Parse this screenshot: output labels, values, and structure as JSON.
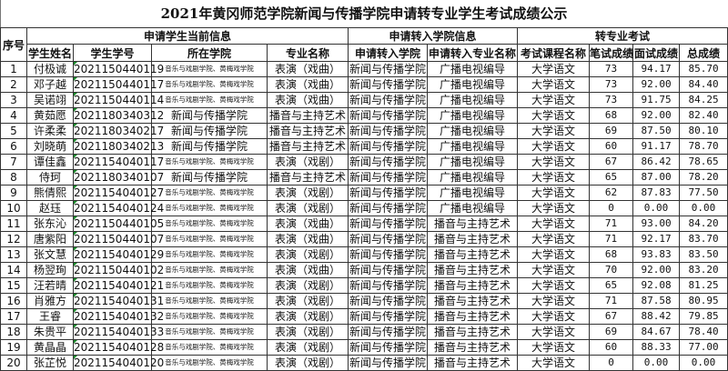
{
  "title": "2021年黄冈师范学院新闻与传播学院申请转专业学生考试成绩公示",
  "group_headers": {
    "index": "序号",
    "current": "申请学生当前信息",
    "target": "申请转入学院信息",
    "exam": "转专业考试"
  },
  "columns": [
    "学生姓名",
    "学生学号",
    "所在学院",
    "专业名称",
    "申请转入学院",
    "申请转入专业名称",
    "考试课程名称",
    "笔试成绩",
    "面试成绩",
    "总成绩"
  ],
  "rows": [
    [
      "1",
      "付极诚",
      "2021150440119",
      "音乐与戏剧学院、黄梅戏学院",
      "表演（戏曲）",
      "新闻与传播学院",
      "广播电视编导",
      "大学语文",
      "73",
      "94.17",
      "85.70"
    ],
    [
      "2",
      "邓子越",
      "2021150440117",
      "音乐与戏剧学院、黄梅戏学院",
      "表演（戏曲）",
      "新闻与传播学院",
      "广播电视编导",
      "大学语文",
      "73",
      "92.00",
      "84.40"
    ],
    [
      "3",
      "吴诺翊",
      "2021150440114",
      "音乐与戏剧学院、黄梅戏学院",
      "表演（戏曲）",
      "新闻与传播学院",
      "广播电视编导",
      "大学语文",
      "73",
      "91.75",
      "84.25"
    ],
    [
      "4",
      "黄茹愿",
      "2021180340312",
      "新闻与传播学院",
      "播音与主持艺术",
      "新闻与传播学院",
      "广播电视编导",
      "大学语文",
      "68",
      "92.00",
      "82.40"
    ],
    [
      "5",
      "许柔柔",
      "2021180340217",
      "新闻与传播学院",
      "播音与主持艺术",
      "新闻与传播学院",
      "广播电视编导",
      "大学语文",
      "69",
      "87.50",
      "80.10"
    ],
    [
      "6",
      "刘晓萌",
      "2021180340213",
      "新闻与传播学院",
      "播音与主持艺术",
      "新闻与传播学院",
      "广播电视编导",
      "大学语文",
      "60",
      "91.17",
      "78.70"
    ],
    [
      "7",
      "谭佳鑫",
      "2021154040117",
      "音乐与戏剧学院、黄梅戏学院",
      "表演（戏剧）",
      "新闻与传播学院",
      "广播电视编导",
      "大学语文",
      "67",
      "86.42",
      "78.65"
    ],
    [
      "8",
      "侍珂",
      "2021180340107",
      "新闻与传播学院",
      "播音与主持艺术",
      "新闻与传播学院",
      "广播电视编导",
      "大学语文",
      "65",
      "87.00",
      "78.20"
    ],
    [
      "9",
      "熊倩熙",
      "2021154040127",
      "音乐与戏剧学院、黄梅戏学院",
      "表演（戏剧）",
      "新闻与传播学院",
      "广播电视编导",
      "大学语文",
      "62",
      "87.83",
      "77.50"
    ],
    [
      "10",
      "赵珏",
      "2021154040124",
      "音乐与戏剧学院、黄梅戏学院",
      "表演（戏剧）",
      "新闻与传播学院",
      "广播电视编导",
      "大学语文",
      "0",
      "0.00",
      "0.00"
    ],
    [
      "11",
      "张东沁",
      "2021150440105",
      "音乐与戏剧学院、黄梅戏学院",
      "表演（戏曲）",
      "新闻与传播学院",
      "播音与主持艺术",
      "大学语文",
      "71",
      "93.00",
      "84.20"
    ],
    [
      "12",
      "唐紫阳",
      "2021150440107",
      "音乐与戏剧学院、黄梅戏学院",
      "表演（戏曲）",
      "新闻与传播学院",
      "播音与主持艺术",
      "大学语文",
      "71",
      "92.17",
      "83.70"
    ],
    [
      "13",
      "张文慧",
      "2021154040129",
      "音乐与戏剧学院、黄梅戏学院",
      "表演（戏剧）",
      "新闻与传播学院",
      "播音与主持艺术",
      "大学语文",
      "68",
      "93.83",
      "83.50"
    ],
    [
      "14",
      "杨翌珣",
      "2021150440102",
      "音乐与戏剧学院、黄梅戏学院",
      "表演（戏曲）",
      "新闻与传播学院",
      "播音与主持艺术",
      "大学语文",
      "70",
      "92.00",
      "83.20"
    ],
    [
      "15",
      "汪若晴",
      "2021154040121",
      "音乐与戏剧学院、黄梅戏学院",
      "表演（戏剧）",
      "新闻与传播学院",
      "播音与主持艺术",
      "大学语文",
      "65",
      "92.08",
      "81.25"
    ],
    [
      "16",
      "肖雅方",
      "2021154040131",
      "音乐与戏剧学院、黄梅戏学院",
      "表演（戏剧）",
      "新闻与传播学院",
      "播音与主持艺术",
      "大学语文",
      "71",
      "87.58",
      "80.95"
    ],
    [
      "17",
      "王睿",
      "2021154040132",
      "音乐与戏剧学院、黄梅戏学院",
      "表演（戏剧）",
      "新闻与传播学院",
      "播音与主持艺术",
      "大学语文",
      "67",
      "88.42",
      "79.85"
    ],
    [
      "18",
      "朱贵平",
      "2021154040133",
      "音乐与戏剧学院、黄梅戏学院",
      "表演（戏剧）",
      "新闻与传播学院",
      "播音与主持艺术",
      "大学语文",
      "69",
      "84.67",
      "78.40"
    ],
    [
      "19",
      "黄晶晶",
      "2021154040128",
      "音乐与戏剧学院、黄梅戏学院",
      "表演（戏剧）",
      "新闻与传播学院",
      "播音与主持艺术",
      "大学语文",
      "60",
      "88.33",
      "77.00"
    ],
    [
      "20",
      "张芷悦",
      "2021154040120",
      "音乐与戏剧学院、黄梅戏学院",
      "表演（戏剧）",
      "新闻与传播学院",
      "播音与主持艺术",
      "大学语文",
      "0",
      "0.00",
      "0.00"
    ]
  ]
}
